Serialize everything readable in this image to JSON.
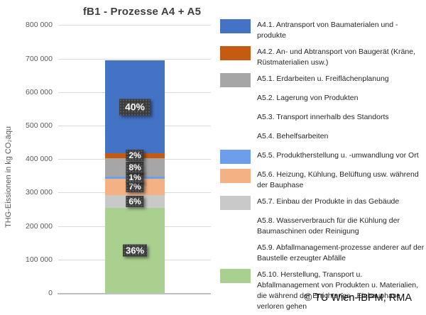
{
  "title": "fB1 - Prozesse A4 + A5",
  "y_axis": {
    "title": "THG-Eissionen in kg CO₂äqu",
    "ticks": [
      "0",
      "100 000",
      "200 000",
      "300 000",
      "400 000",
      "500 000",
      "600 000",
      "700 000",
      "800 000"
    ]
  },
  "copyright": "© TU Wien-IBPM, RMA",
  "colors": {
    "gridline": "#d9d9d9",
    "axis_line": "#bfbfbf",
    "tick_text": "#595959",
    "title_text": "#3f3f3f",
    "label_box": "#3b3b3b",
    "label_text": "#ffffff"
  },
  "chart_data": {
    "type": "bar",
    "stacked": true,
    "title": "fB1 - Prozesse A4 + A5",
    "xlabel": "",
    "ylabel": "THG-Eissionen in kg CO₂äqu",
    "ylim": [
      0,
      800000
    ],
    "ytick_step": 100000,
    "grid": true,
    "legend_position": "right",
    "bar_total_approx": 695000,
    "series": [
      {
        "name": "A4.1. Antransport von Baumaterialen und -produkte",
        "value": 277000,
        "pct": "40%",
        "color": "#4472c4"
      },
      {
        "name": "A4.2. An- und Abtransport von Baugerät (Kräne, Rüstmaterialien usw.)",
        "value": 15000,
        "pct": "2%",
        "color": "#c55a11"
      },
      {
        "name": "A5.1. Erdarbeiten u. Freiflächenplanung",
        "value": 54000,
        "pct": "8%",
        "color": "#a6a6a6"
      },
      {
        "name": "A5.2. Lagerung von Produkten",
        "value": 0,
        "pct": "",
        "color": null
      },
      {
        "name": "A5.3. Transport innerhalb des Standorts",
        "value": 0,
        "pct": "",
        "color": null
      },
      {
        "name": "A5.4. Behelfsarbeiten",
        "value": 0,
        "pct": "",
        "color": null
      },
      {
        "name": "A5.5. Produktherstellung u. -umwandlung vor Ort",
        "value": 7500,
        "pct": "1%",
        "color": "#6d9eeb"
      },
      {
        "name": "A5.6. Heizung, Kühlung, Belüftung usw. während der Bauphase",
        "value": 48500,
        "pct": "7%",
        "color": "#f4b183"
      },
      {
        "name": "A5.7. Einbau der Produkte in das Gebäude",
        "value": 38500,
        "pct": "6%",
        "color": "#c9c9c9"
      },
      {
        "name": "A5.8. Wasserverbrauch für die Kühlung der Baumaschinen oder Reinigung",
        "value": 0,
        "pct": "",
        "color": null
      },
      {
        "name": "A5.9. Abfallmanagement-prozesse anderer auf der Baustelle erzeugter Abfälle",
        "value": 0,
        "pct": "",
        "color": null
      },
      {
        "name": "A5.10. Herstellung, Transport u. Abfallmanagement von Produkten u. Materialien, die während der Errichtungs-. Einbauphase verloren gehen",
        "value": 254000,
        "pct": "36%",
        "color": "#a9d08e"
      }
    ]
  }
}
